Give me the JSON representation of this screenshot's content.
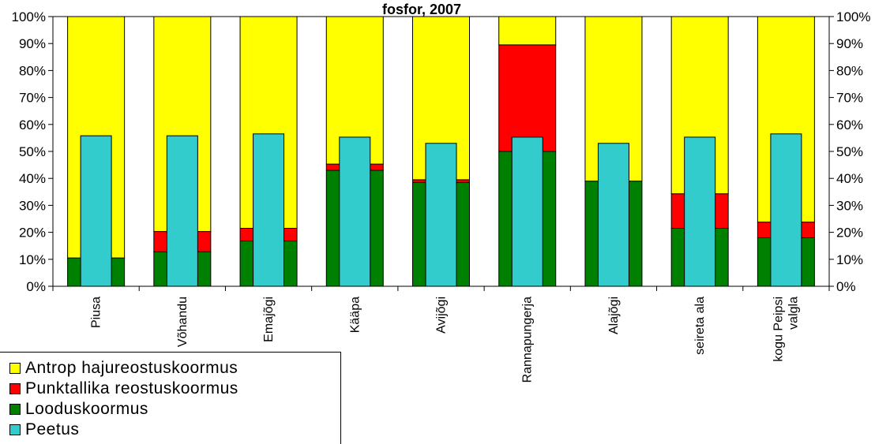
{
  "chart_data": {
    "type": "bar",
    "title": "fosfor, 2007",
    "ylim": [
      0,
      100
    ],
    "y_ticks": [
      "0%",
      "10%",
      "20%",
      "30%",
      "40%",
      "50%",
      "60%",
      "70%",
      "80%",
      "90%",
      "100%"
    ],
    "categories": [
      "Piusa",
      "Võhandu",
      "Emajõgi",
      "Kääpa",
      "Avijõgi",
      "Rannapungerja",
      "Alajõgi",
      "seireta ala",
      "kogu Peipsi valgla"
    ],
    "stacked_series": [
      {
        "name": "Looduskoormus",
        "color": "#008000",
        "values": [
          10.5,
          12.8,
          16.8,
          43.0,
          38.5,
          50.0,
          39.0,
          21.5,
          18.0
        ]
      },
      {
        "name": "Punktallika reostuskoormus",
        "color": "#ff0000",
        "values": [
          0,
          7.5,
          4.7,
          2.3,
          1.0,
          39.5,
          0,
          12.8,
          5.8
        ]
      },
      {
        "name": "Antrop hajureostuskoormus",
        "color": "#ffff00",
        "values": [
          89.5,
          79.7,
          78.5,
          54.7,
          60.5,
          10.5,
          61.0,
          65.7,
          76.2
        ]
      }
    ],
    "overlay_series": {
      "name": "Peetus",
      "color": "#33cccc",
      "values": [
        55.8,
        55.8,
        56.5,
        55.3,
        53.0,
        55.3,
        53.0,
        55.3,
        56.5
      ]
    },
    "legend": [
      {
        "name": "Antrop hajureostuskoormus",
        "color": "#ffff00"
      },
      {
        "name": "Punktallika reostuskoormus",
        "color": "#ff0000"
      },
      {
        "name": "Looduskoormus",
        "color": "#008000"
      },
      {
        "name": "Peetus",
        "color": "#33cccc"
      }
    ],
    "legend_position": "bottom-left",
    "grid": false
  }
}
